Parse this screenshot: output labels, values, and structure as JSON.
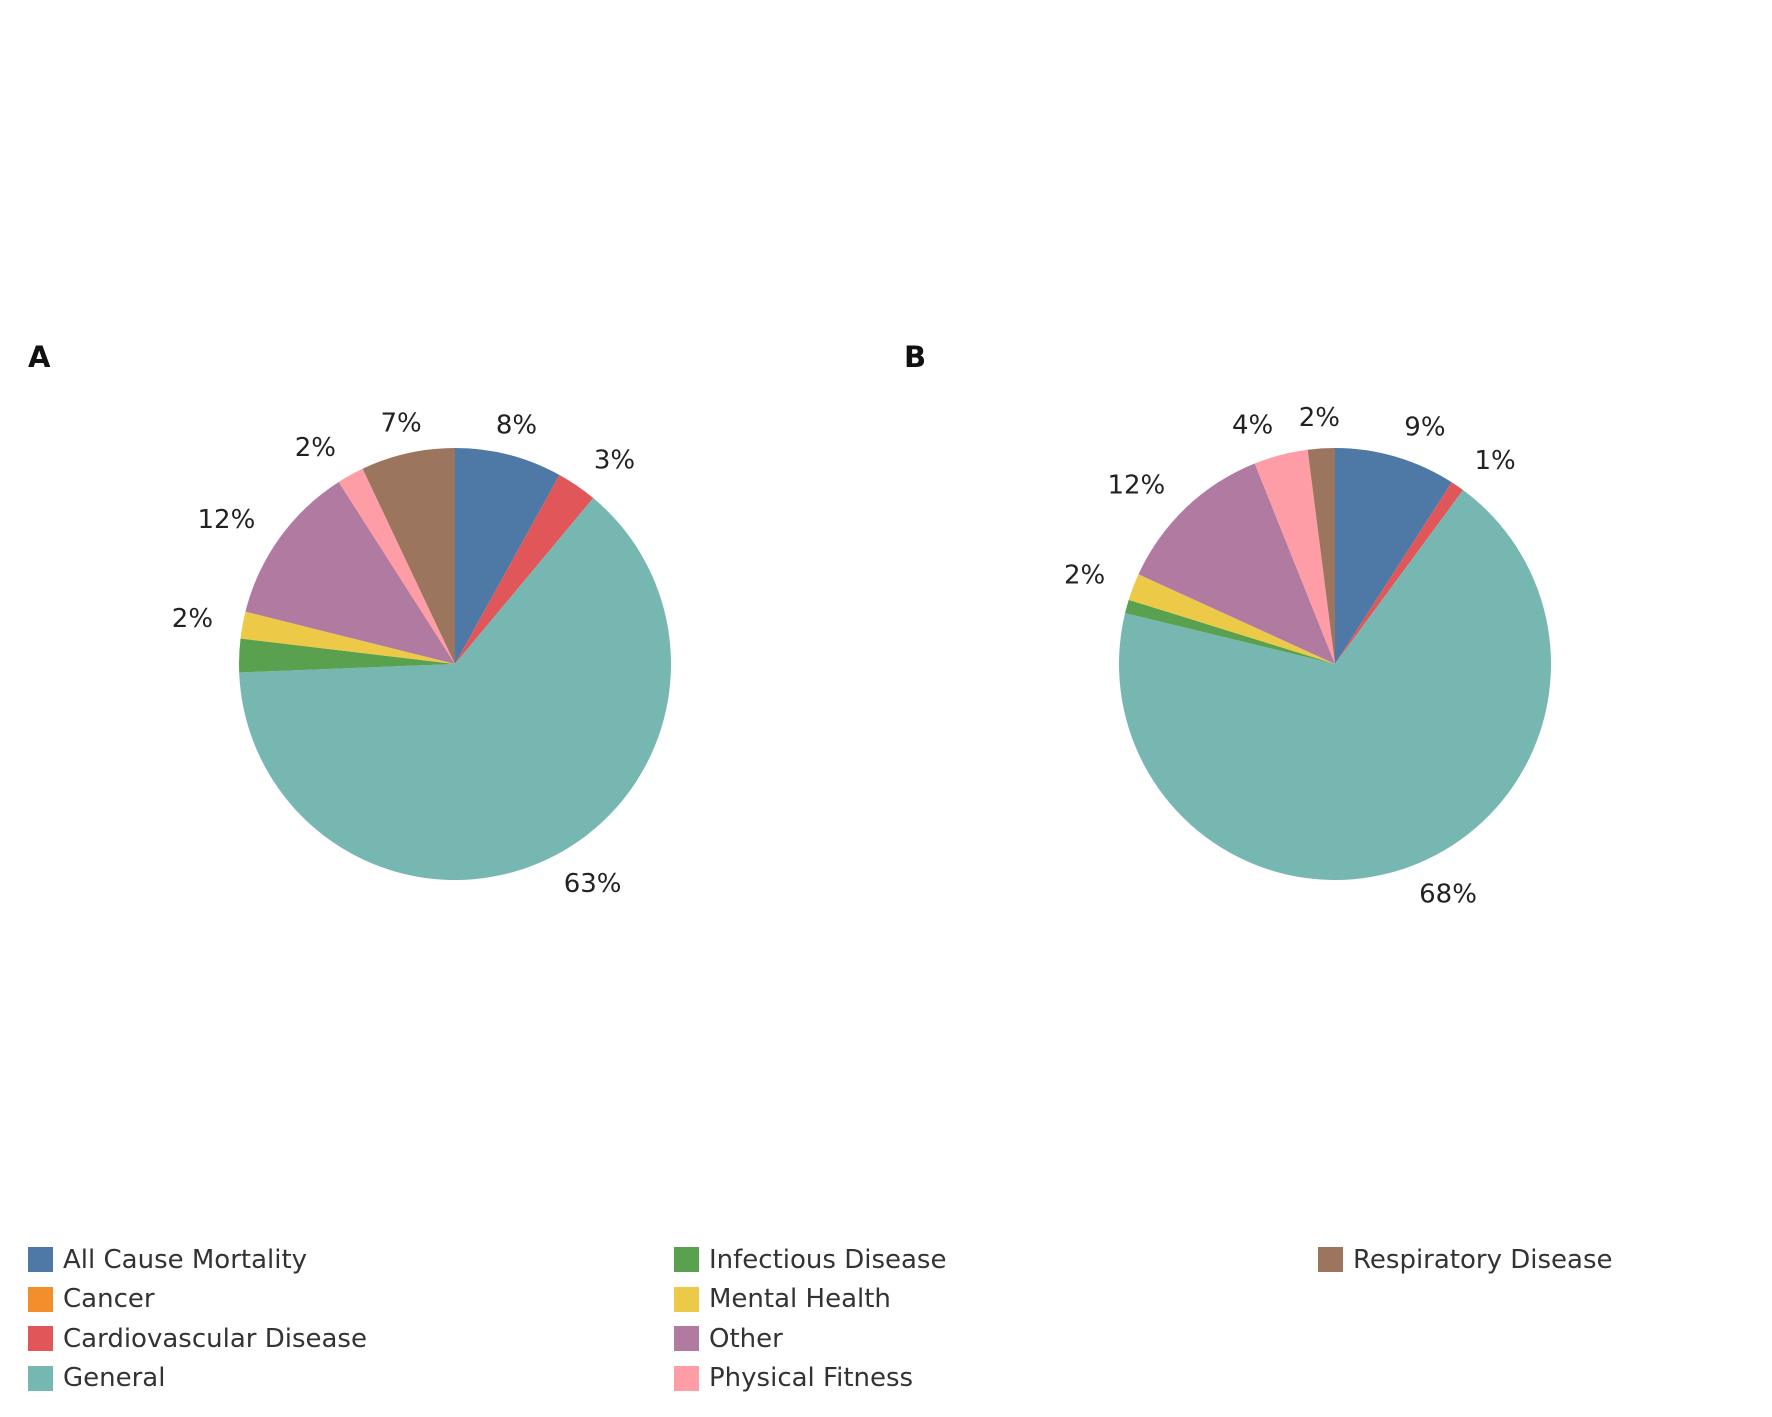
{
  "chart_data": [
    {
      "type": "pie",
      "panel_label": "A",
      "start_angle_deg": 0,
      "direction": "clockwise",
      "slices": [
        {
          "category": "All Cause Mortality",
          "value": 8,
          "label": "8%"
        },
        {
          "category": "Cardiovascular Disease",
          "value": 3,
          "label": "3%"
        },
        {
          "category": "General",
          "value": 63,
          "label": "63%"
        },
        {
          "category": "Infectious Disease",
          "value": 2.5,
          "label": ""
        },
        {
          "category": "Mental Health",
          "value": 2,
          "label": "2%"
        },
        {
          "category": "Other",
          "value": 12,
          "label": "12%"
        },
        {
          "category": "Physical Fitness",
          "value": 2,
          "label": "2%"
        },
        {
          "category": "Respiratory Disease",
          "value": 7,
          "label": "7%"
        }
      ]
    },
    {
      "type": "pie",
      "panel_label": "B",
      "start_angle_deg": 0,
      "direction": "clockwise",
      "slices": [
        {
          "category": "All Cause Mortality",
          "value": 9,
          "label": "9%"
        },
        {
          "category": "Cardiovascular Disease",
          "value": 1,
          "label": "1%"
        },
        {
          "category": "General",
          "value": 68,
          "label": "68%"
        },
        {
          "category": "Infectious Disease",
          "value": 1,
          "label": ""
        },
        {
          "category": "Mental Health",
          "value": 2,
          "label": "2%"
        },
        {
          "category": "Other",
          "value": 12,
          "label": "12%"
        },
        {
          "category": "Physical Fitness",
          "value": 4,
          "label": "4%"
        },
        {
          "category": "Respiratory Disease",
          "value": 2,
          "label": "2%"
        }
      ]
    }
  ],
  "legend": {
    "columns": [
      [
        "All Cause Mortality",
        "Cancer",
        "Cardiovascular Disease",
        "General"
      ],
      [
        "Infectious Disease",
        "Mental Health",
        "Other",
        "Physical Fitness"
      ],
      [
        "Respiratory Disease"
      ]
    ]
  },
  "colors": {
    "All Cause Mortality": "#4e79a7",
    "Cancer": "#f28e2b",
    "Cardiovascular Disease": "#e15759",
    "General": "#76b7b2",
    "Infectious Disease": "#59a14f",
    "Mental Health": "#edc948",
    "Other": "#b07aa1",
    "Physical Fitness": "#ff9da7",
    "Respiratory Disease": "#9c755f"
  }
}
